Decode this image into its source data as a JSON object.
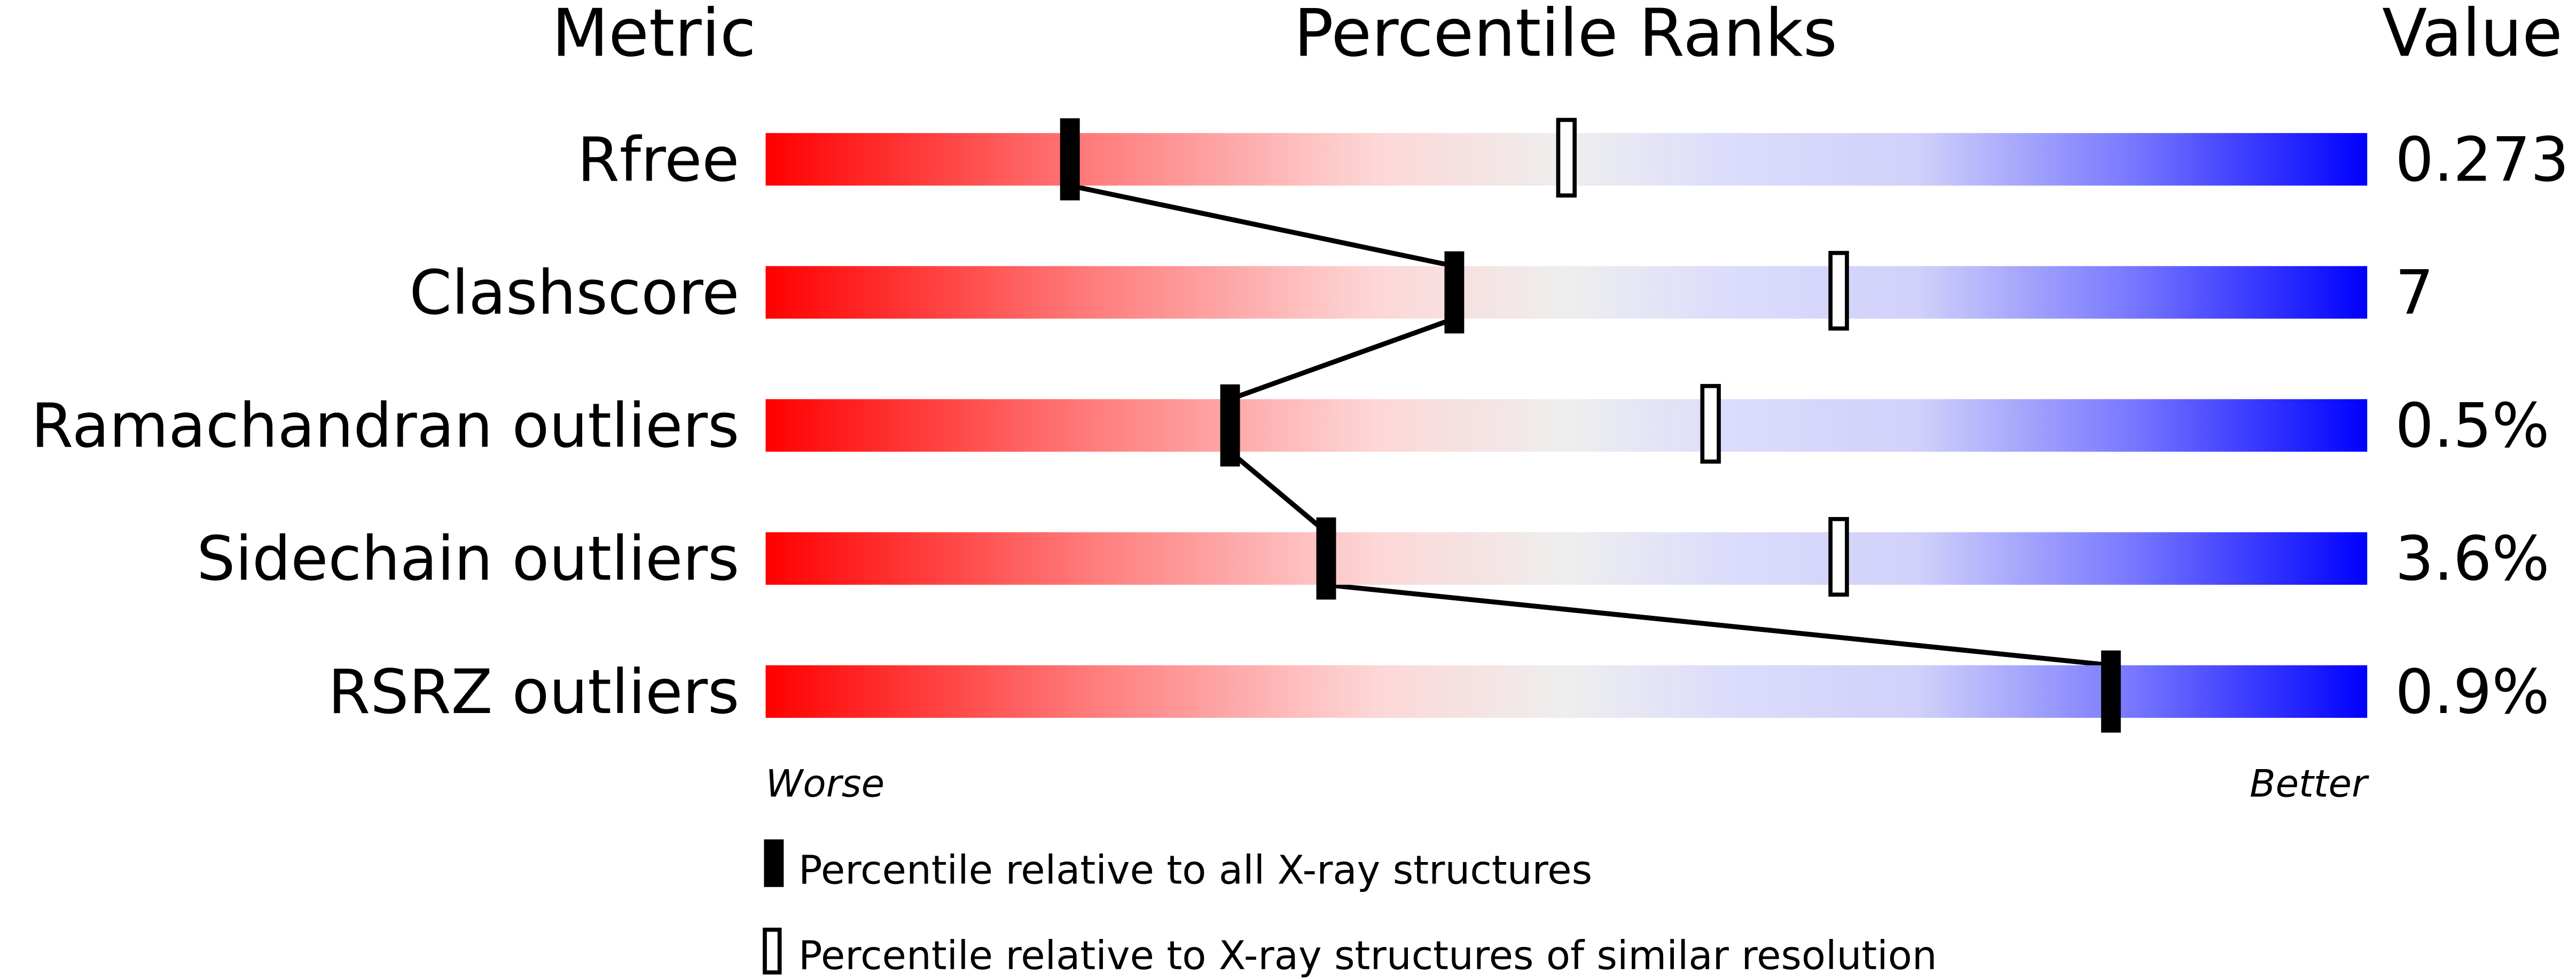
{
  "chart_data": {
    "type": "percentile-slider",
    "headers": {
      "metric": "Metric",
      "ranks": "Percentile Ranks",
      "value": "Value"
    },
    "xlim": [
      0,
      100
    ],
    "metrics": [
      {
        "name": "Rfree",
        "value": "0.273",
        "percentile_all": 19,
        "percentile_similar": 50
      },
      {
        "name": "Clashscore",
        "value": "7",
        "percentile_all": 43,
        "percentile_similar": 67
      },
      {
        "name": "Ramachandran outliers",
        "value": "0.5%",
        "percentile_all": 29,
        "percentile_similar": 59
      },
      {
        "name": "Sidechain outliers",
        "value": "3.6%",
        "percentile_all": 35,
        "percentile_similar": 67
      },
      {
        "name": "RSRZ outliers",
        "value": "0.9%",
        "percentile_all": 84,
        "percentile_similar": null
      }
    ],
    "axis_labels": {
      "worse": "Worse",
      "better": "Better"
    },
    "legend": {
      "all": "Percentile relative to all X-ray structures",
      "similar": "Percentile relative to X-ray structures of similar resolution"
    },
    "colors": {
      "worse": "#ff0000",
      "mid": "#eeeeee",
      "better": "#0000ff",
      "marker": "#000000"
    }
  }
}
